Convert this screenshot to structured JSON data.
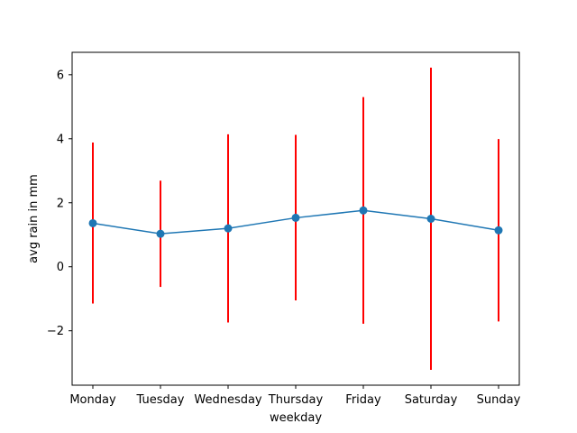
{
  "chart_data": {
    "type": "line",
    "title": "",
    "xlabel": "weekday",
    "ylabel": "avg rain in mm",
    "categories": [
      "Monday",
      "Tuesday",
      "Wednesday",
      "Thursday",
      "Friday",
      "Saturday",
      "Sunday"
    ],
    "series": [
      {
        "name": "avg rain",
        "values": [
          1.36,
          1.03,
          1.2,
          1.53,
          1.76,
          1.5,
          1.14
        ],
        "error_low": [
          -1.15,
          -0.63,
          -1.74,
          -1.05,
          -1.78,
          -3.22,
          -1.71
        ],
        "error_high": [
          3.88,
          2.69,
          4.14,
          4.12,
          5.3,
          6.22,
          3.99
        ]
      }
    ],
    "y_ticks": [
      6,
      4,
      2,
      0,
      -2
    ],
    "y_tick_labels": [
      "6",
      "4",
      "2",
      "0",
      "−2"
    ],
    "ylim": [
      -3.7,
      6.7
    ],
    "grid": false,
    "colors": {
      "line": "#1f77b4",
      "marker": "#1f77b4",
      "error": "#ff0000",
      "axes": "#000000"
    }
  }
}
